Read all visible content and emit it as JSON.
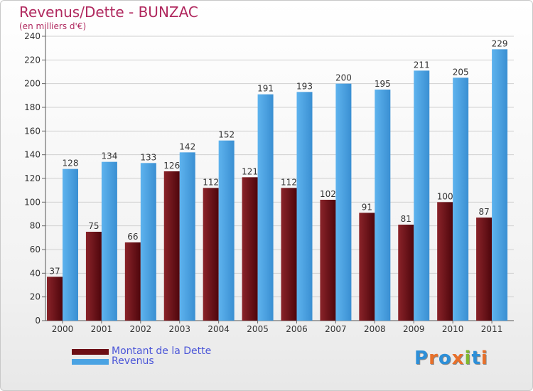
{
  "title": "Revenus/Dette - BUNZAC",
  "subtitle": "(en milliers d'€)",
  "legend": {
    "items": [
      {
        "label": "Montant de la Dette",
        "color": "#6b0d14"
      },
      {
        "label": "Revenus",
        "color": "#4aa3e3"
      }
    ]
  },
  "logo": {
    "text": "Proxiti",
    "letters": [
      "P",
      "r",
      "o",
      "x",
      "i",
      "t",
      "i"
    ],
    "letter_colors": [
      "#2d8fd8",
      "#e8702a",
      "#2d8fd8",
      "#e8702a",
      "#7fb82e",
      "#2d8fd8",
      "#e8702a"
    ]
  },
  "chart_data": {
    "type": "bar",
    "categories": [
      "2000",
      "2001",
      "2002",
      "2003",
      "2004",
      "2005",
      "2006",
      "2007",
      "2008",
      "2009",
      "2010",
      "2011"
    ],
    "series": [
      {
        "name": "Montant de la Dette",
        "color": "#6b0d14",
        "values": [
          37,
          75,
          66,
          126,
          112,
          121,
          112,
          102,
          91,
          81,
          100,
          87
        ]
      },
      {
        "name": "Revenus",
        "color": "#4aa3e3",
        "values": [
          128,
          134,
          133,
          142,
          152,
          191,
          193,
          200,
          195,
          211,
          205,
          229
        ]
      }
    ],
    "ylim": [
      0,
      240
    ],
    "yticks": [
      0,
      20,
      40,
      60,
      80,
      100,
      120,
      140,
      160,
      180,
      200,
      220,
      240
    ],
    "grid": true,
    "legend_position": "bottom-left"
  }
}
